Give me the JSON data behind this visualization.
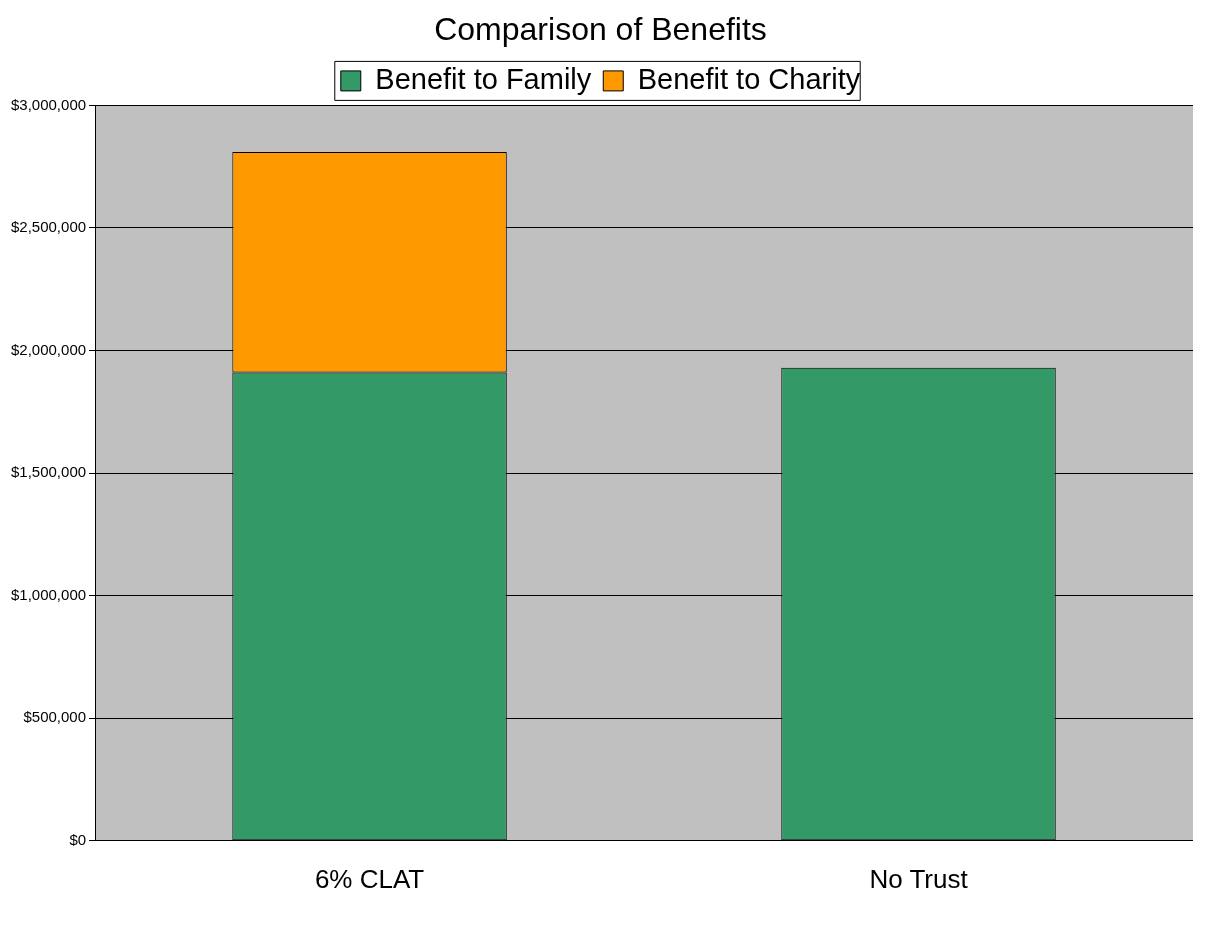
{
  "chart_data": {
    "type": "bar",
    "title": "Comparison of Benefits",
    "categories": [
      "6% CLAT",
      "No Trust"
    ],
    "stacked": true,
    "series": [
      {
        "name": "Benefit to Family",
        "color": "#339966",
        "values": [
          1910000,
          1930000
        ]
      },
      {
        "name": "Benefit to Charity",
        "color": "#ff9900",
        "values": [
          900000,
          null
        ]
      }
    ],
    "ylim": [
      0,
      3000000
    ],
    "yticks": [
      {
        "value": 0,
        "label": "$0"
      },
      {
        "value": 500000,
        "label": "$500,000"
      },
      {
        "value": 1000000,
        "label": "$1,000,000"
      },
      {
        "value": 1500000,
        "label": "$1,500,000"
      },
      {
        "value": 2000000,
        "label": "$2,000,000"
      },
      {
        "value": 2500000,
        "label": "$2,500,000"
      },
      {
        "value": 3000000,
        "label": "$3,000,000"
      }
    ],
    "grid": "y",
    "legend": "top"
  }
}
